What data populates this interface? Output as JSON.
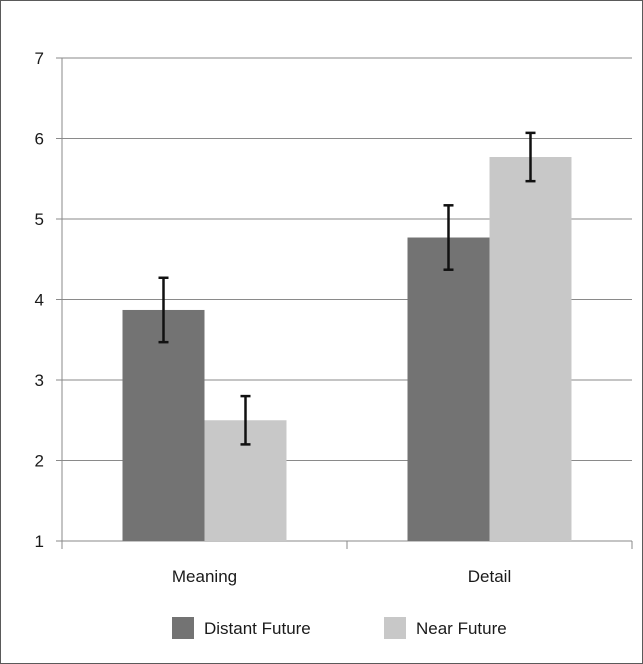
{
  "chart_data": {
    "type": "bar",
    "categories": [
      "Meaning",
      "Detail"
    ],
    "series": [
      {
        "name": "Distant Future",
        "values": [
          3.87,
          4.77
        ],
        "error": [
          0.4,
          0.4
        ],
        "color": "#737373"
      },
      {
        "name": "Near Future",
        "values": [
          2.5,
          5.77
        ],
        "error": [
          0.3,
          0.3
        ],
        "color": "#c8c8c8"
      }
    ],
    "yticks": [
      1,
      2,
      3,
      4,
      5,
      6,
      7
    ],
    "ylim": [
      1,
      7
    ],
    "grid": true,
    "legend_position": "bottom",
    "title": "",
    "xlabel": "",
    "ylabel": ""
  }
}
